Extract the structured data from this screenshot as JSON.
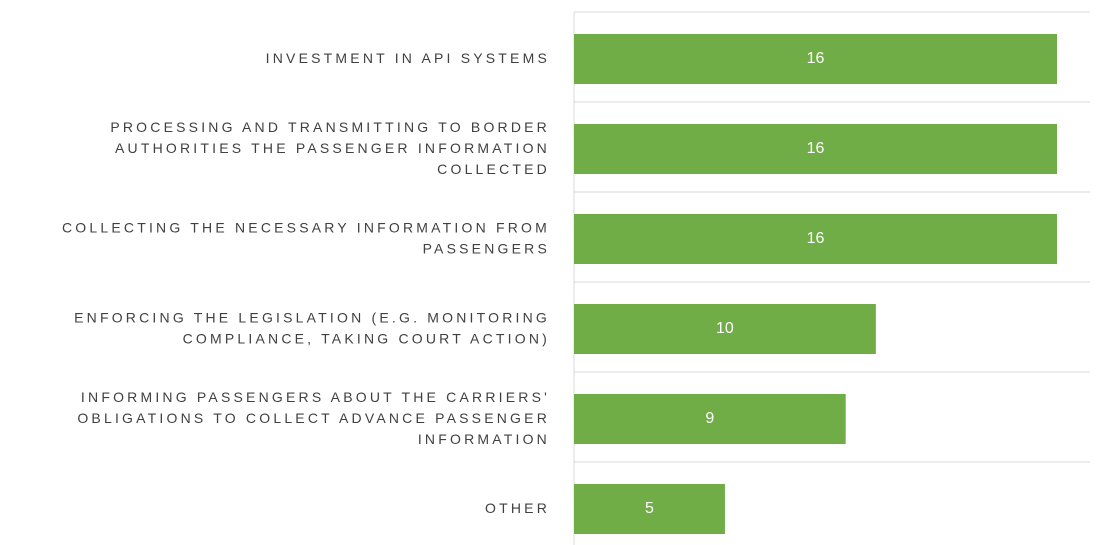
{
  "chart_data": {
    "type": "bar",
    "orientation": "horizontal",
    "categories": [
      "INVESTMENT IN API SYSTEMS",
      "PROCESSING AND TRANSMITTING TO BORDER AUTHORITIES THE PASSENGER INFORMATION COLLECTED",
      "COLLECTING THE NECESSARY INFORMATION FROM PASSENGERS",
      "ENFORCING THE LEGISLATION (E.G. MONITORING COMPLIANCE, TAKING COURT ACTION)",
      "INFORMING PASSENGERS ABOUT THE CARRIERS' OBLIGATIONS TO COLLECT ADVANCE PASSENGER INFORMATION",
      "OTHER"
    ],
    "values": [
      16,
      16,
      16,
      10,
      9,
      5
    ],
    "color": "#70ad47",
    "xlim": [
      0,
      16
    ]
  }
}
